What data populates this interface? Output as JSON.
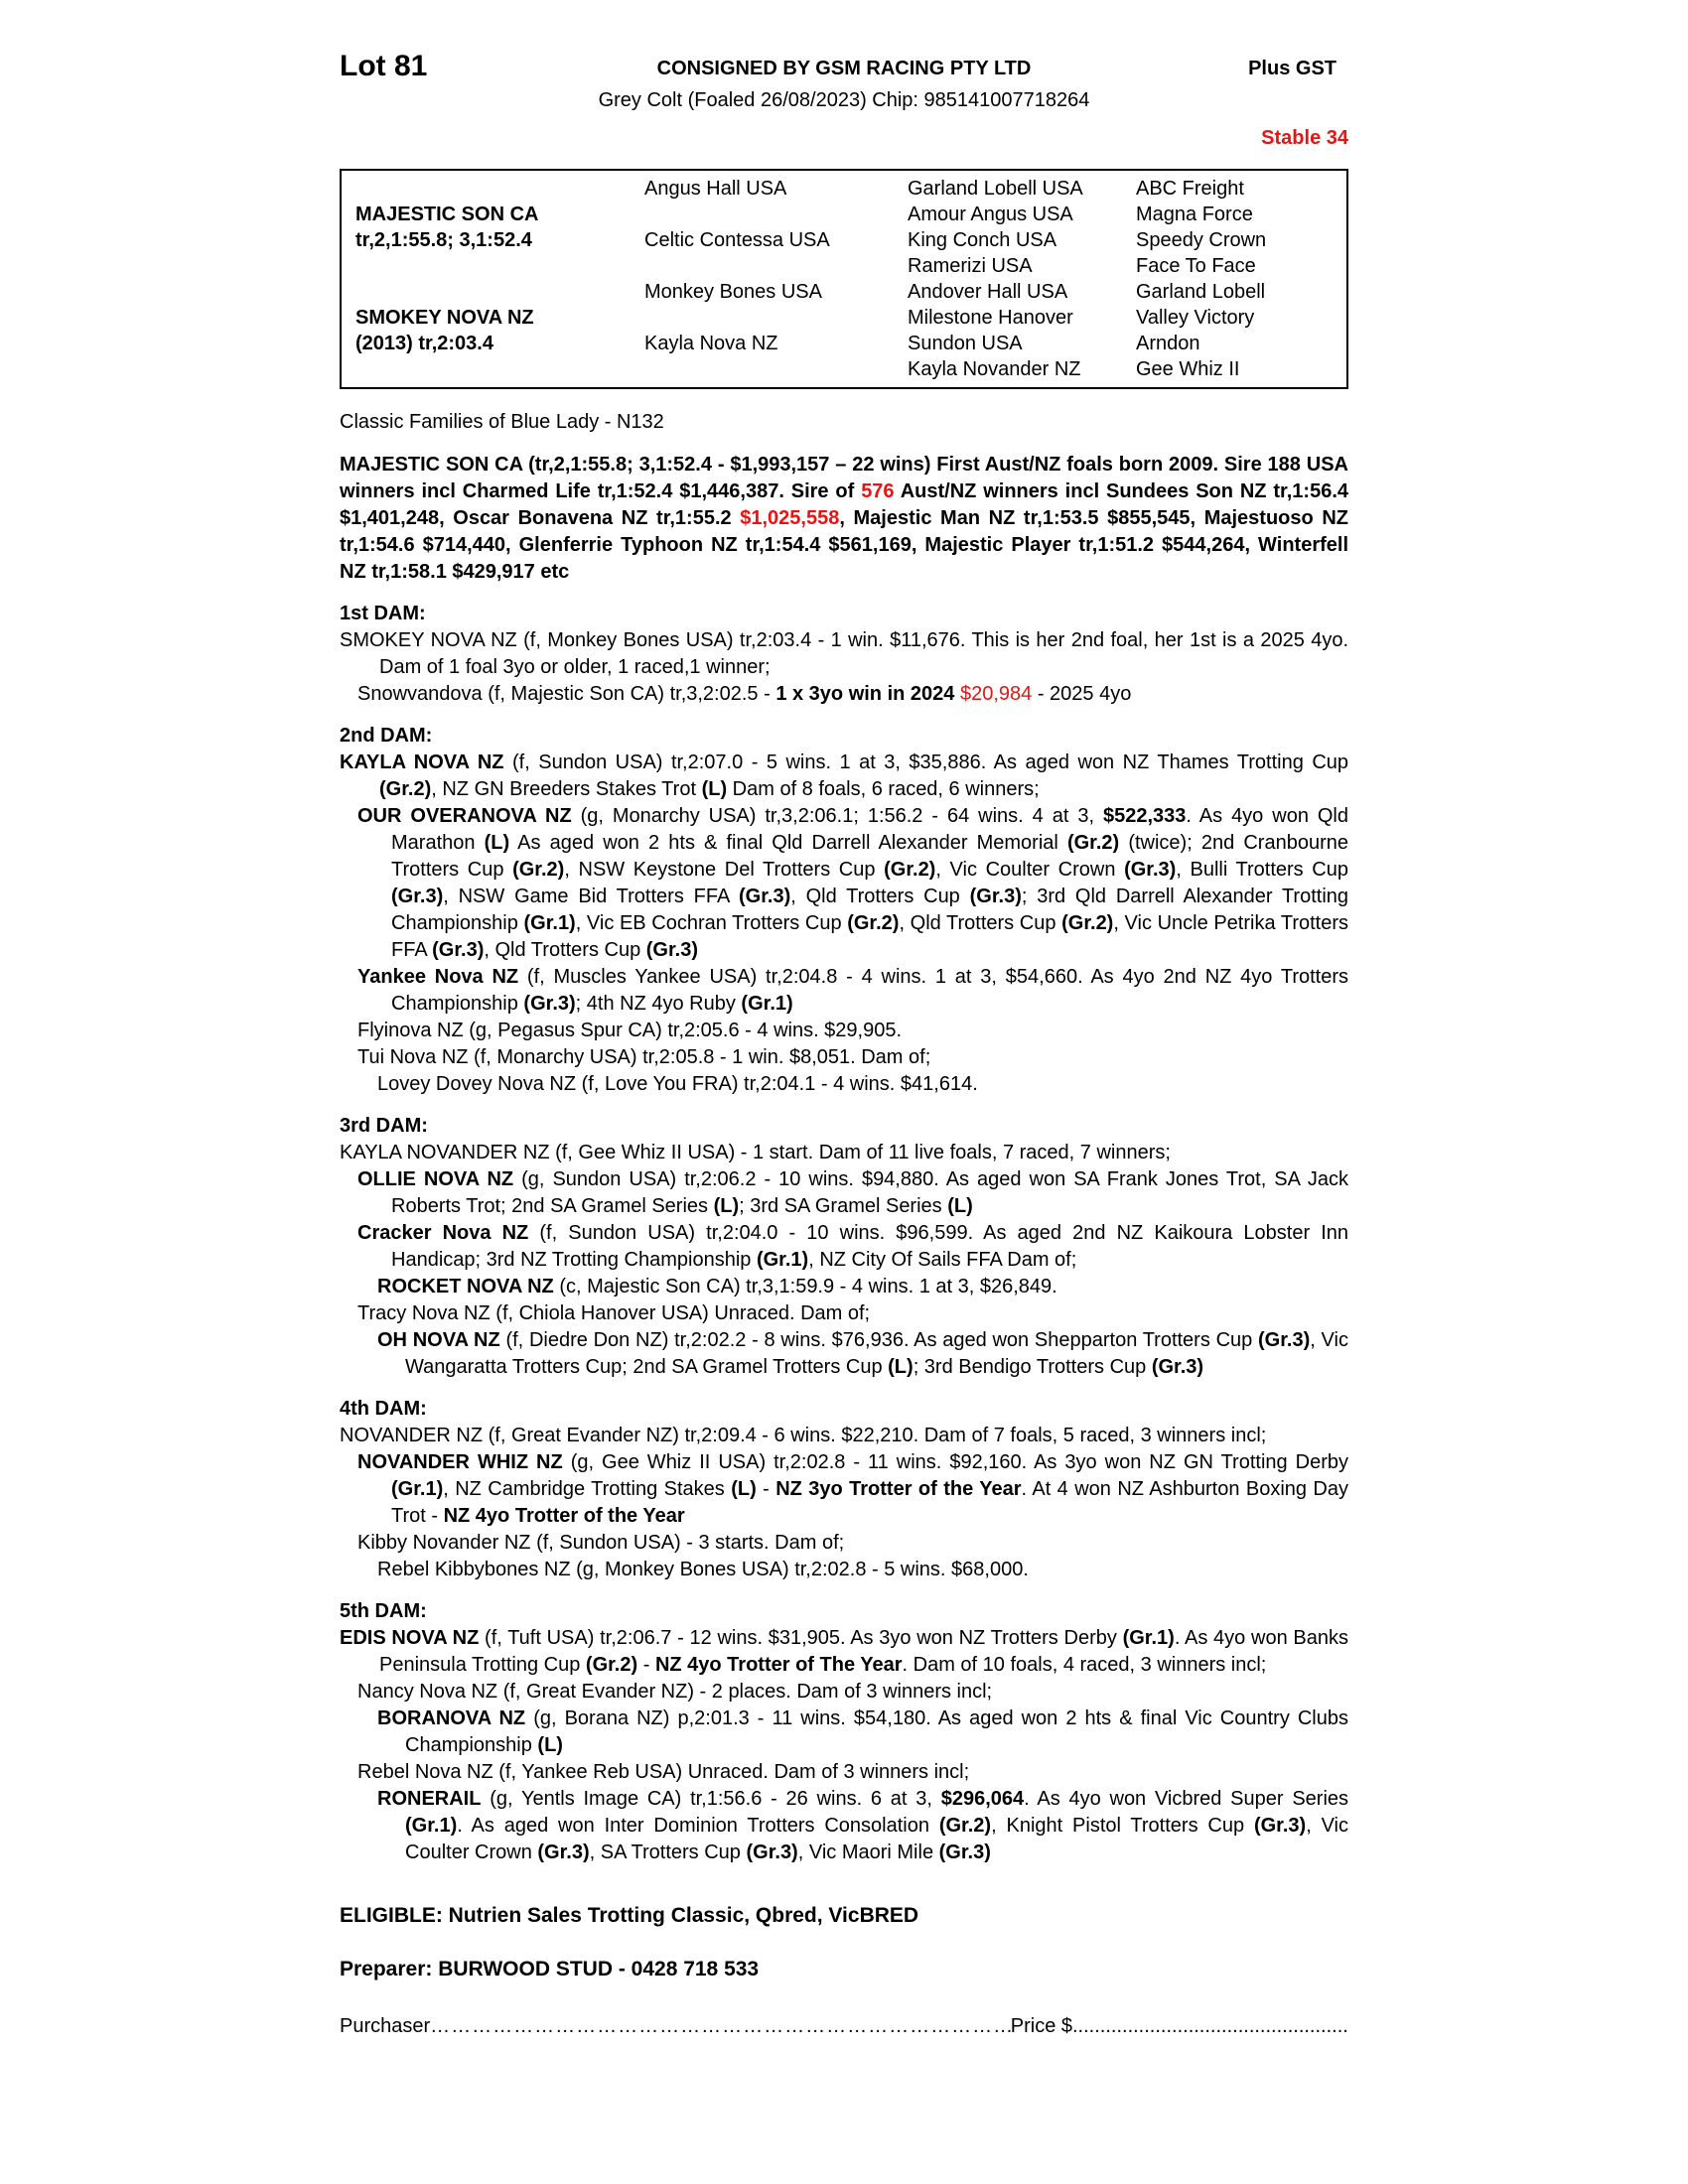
{
  "colors": {
    "red": "#ee1111",
    "text": "#000000",
    "background": "#ffffff"
  },
  "header": {
    "lot": "Lot 81",
    "consignor": "CONSIGNED BY GSM RACING PTY LTD",
    "plus_gst": "Plus GST",
    "description": "Grey Colt (Foaled 26/08/2023) Chip: 985141007718264",
    "stable": "Stable 34"
  },
  "pedigree_table": {
    "sire": {
      "name": "MAJESTIC SON CA",
      "record": "tr,2,1:55.8; 3,1:52.4"
    },
    "dam": {
      "name": "SMOKEY NOVA NZ",
      "record": "(2013) tr,2:03.4"
    },
    "gen2": [
      "Angus Hall USA",
      "Celtic Contessa USA",
      "Monkey Bones USA",
      "Kayla Nova NZ"
    ],
    "gen3": [
      "Garland Lobell USA",
      "Amour Angus USA",
      "King Conch USA",
      "Ramerizi USA",
      "Andover Hall USA",
      "Milestone Hanover",
      "Sundon USA",
      "Kayla Novander NZ"
    ],
    "gen4": [
      "ABC Freight",
      "Magna Force",
      "Speedy Crown",
      "Face To Face",
      "Garland Lobell",
      "Valley Victory",
      "Arndon",
      "Gee Whiz II"
    ]
  },
  "family_line": "Classic Families of Blue Lady - N132",
  "sections": [
    {
      "heading": null,
      "paragraphs": [
        {
          "level": "s",
          "segments": [
            {
              "t": "MAJESTIC SON CA (tr,2,1:55.8; 3,1:52.4 - $1,993,157 – 22 wins) First Aust/NZ foals born 2009. Sire 188 USA winners incl Charmed Life tr,1:52.4 $1,446,387. Sire of ",
              "b": true
            },
            {
              "t": "576",
              "b": true,
              "r": true
            },
            {
              "t": " Aust/NZ winners incl Sundees Son NZ tr,1:56.4 $1,401,248, Oscar Bonavena NZ tr,1:55.2 ",
              "b": true
            },
            {
              "t": "$1,025,558",
              "b": true,
              "r": true
            },
            {
              "t": ", Majestic Man NZ tr,1:53.5 $855,545, Majestuoso NZ tr,1:54.6 $714,440, Glenferrie Typhoon NZ tr,1:54.4 $561,169, Majestic Player tr,1:51.2 $544,264, Winterfell NZ tr,1:58.1 $429,917 etc",
              "b": true
            }
          ]
        }
      ]
    },
    {
      "heading": "1st DAM:",
      "paragraphs": [
        {
          "level": 0,
          "segments": [
            {
              "t": "SMOKEY NOVA NZ (f, Monkey Bones USA) tr,2:03.4 - 1 win. $11,676. This is her 2nd foal, her 1st is a 2025 4yo. Dam of 1 foal 3yo or older, 1 raced,1 winner;"
            }
          ]
        },
        {
          "level": 1,
          "segments": [
            {
              "t": "Snowvandova (f, Majestic Son CA) tr,3,2:02.5 - "
            },
            {
              "t": "1 x 3yo win in 2024",
              "b": true
            },
            {
              "t": " "
            },
            {
              "t": "$20,984",
              "r": true
            },
            {
              "t": " - 2025 4yo"
            }
          ]
        }
      ]
    },
    {
      "heading": "2nd DAM:",
      "paragraphs": [
        {
          "level": 0,
          "segments": [
            {
              "t": "KAYLA NOVA NZ",
              "b": true
            },
            {
              "t": " (f, Sundon USA) tr,2:07.0 - 5 wins. 1 at 3, $35,886. As aged won NZ Thames Trotting Cup "
            },
            {
              "t": "(Gr.2)",
              "b": true
            },
            {
              "t": ", NZ GN Breeders Stakes Trot "
            },
            {
              "t": "(L)",
              "b": true
            },
            {
              "t": " Dam of 8 foals, 6 raced, 6 winners;"
            }
          ]
        },
        {
          "level": 1,
          "segments": [
            {
              "t": "OUR OVERANOVA NZ",
              "b": true
            },
            {
              "t": " (g, Monarchy USA) tr,3,2:06.1; 1:56.2 - 64 wins. 4 at 3, "
            },
            {
              "t": "$522,333",
              "b": true
            },
            {
              "t": ". As 4yo won Qld Marathon "
            },
            {
              "t": "(L)",
              "b": true
            },
            {
              "t": " As aged won 2 hts & final Qld Darrell Alexander Memorial "
            },
            {
              "t": "(Gr.2)",
              "b": true
            },
            {
              "t": " (twice); 2nd Cranbourne Trotters Cup "
            },
            {
              "t": "(Gr.2)",
              "b": true
            },
            {
              "t": ", NSW Keystone Del Trotters Cup "
            },
            {
              "t": "(Gr.2)",
              "b": true
            },
            {
              "t": ", Vic Coulter Crown "
            },
            {
              "t": "(Gr.3)",
              "b": true
            },
            {
              "t": ", Bulli Trotters Cup "
            },
            {
              "t": "(Gr.3)",
              "b": true
            },
            {
              "t": ", NSW Game Bid Trotters FFA "
            },
            {
              "t": "(Gr.3)",
              "b": true
            },
            {
              "t": ", Qld Trotters Cup "
            },
            {
              "t": "(Gr.3)",
              "b": true
            },
            {
              "t": "; 3rd Qld Darrell Alexander Trotting Championship "
            },
            {
              "t": "(Gr.1)",
              "b": true
            },
            {
              "t": ", Vic EB Cochran Trotters Cup "
            },
            {
              "t": "(Gr.2)",
              "b": true
            },
            {
              "t": ", Qld Trotters Cup "
            },
            {
              "t": "(Gr.2)",
              "b": true
            },
            {
              "t": ", Vic Uncle Petrika Trotters FFA "
            },
            {
              "t": "(Gr.3)",
              "b": true
            },
            {
              "t": ", Qld Trotters Cup "
            },
            {
              "t": "(Gr.3)",
              "b": true
            }
          ]
        },
        {
          "level": 1,
          "segments": [
            {
              "t": "Yankee Nova NZ",
              "b": true
            },
            {
              "t": " (f, Muscles Yankee USA) tr,2:04.8 - 4 wins. 1 at 3, $54,660. As 4yo 2nd NZ 4yo Trotters Championship "
            },
            {
              "t": "(Gr.3)",
              "b": true
            },
            {
              "t": "; 4th NZ 4yo Ruby "
            },
            {
              "t": "(Gr.1)",
              "b": true
            }
          ]
        },
        {
          "level": 1,
          "segments": [
            {
              "t": "Flyinova NZ (g, Pegasus Spur CA) tr,2:05.6 - 4 wins. $29,905."
            }
          ]
        },
        {
          "level": 1,
          "segments": [
            {
              "t": "Tui Nova NZ (f, Monarchy USA) tr,2:05.8 - 1 win. $8,051. Dam of;"
            }
          ]
        },
        {
          "level": 2,
          "segments": [
            {
              "t": "Lovey Dovey Nova NZ (f, Love You FRA) tr,2:04.1 - 4 wins. $41,614."
            }
          ]
        }
      ]
    },
    {
      "heading": "3rd DAM:",
      "paragraphs": [
        {
          "level": 0,
          "segments": [
            {
              "t": "KAYLA NOVANDER NZ (f, Gee Whiz II USA) - 1 start. Dam of 11 live foals, 7 raced, 7 winners;"
            }
          ]
        },
        {
          "level": 1,
          "segments": [
            {
              "t": "OLLIE NOVA NZ",
              "b": true
            },
            {
              "t": " (g, Sundon USA) tr,2:06.2 - 10 wins. $94,880. As aged won SA Frank Jones Trot, SA Jack Roberts Trot; 2nd SA Gramel Series "
            },
            {
              "t": "(L)",
              "b": true
            },
            {
              "t": "; 3rd SA Gramel Series "
            },
            {
              "t": "(L)",
              "b": true
            }
          ]
        },
        {
          "level": 1,
          "segments": [
            {
              "t": "Cracker Nova NZ",
              "b": true
            },
            {
              "t": " (f, Sundon USA) tr,2:04.0 - 10 wins. $96,599. As aged 2nd NZ Kaikoura Lobster Inn Handicap; 3rd NZ Trotting Championship "
            },
            {
              "t": "(Gr.1)",
              "b": true
            },
            {
              "t": ", NZ City Of Sails FFA Dam of;"
            }
          ]
        },
        {
          "level": 2,
          "segments": [
            {
              "t": "ROCKET NOVA NZ",
              "b": true
            },
            {
              "t": " (c, Majestic Son CA) tr,3,1:59.9 - 4 wins. 1 at 3, $26,849."
            }
          ]
        },
        {
          "level": 1,
          "segments": [
            {
              "t": "Tracy Nova NZ (f, Chiola Hanover USA) Unraced. Dam of;"
            }
          ]
        },
        {
          "level": 2,
          "segments": [
            {
              "t": "OH NOVA NZ",
              "b": true
            },
            {
              "t": " (f, Diedre Don NZ) tr,2:02.2 - 8 wins. $76,936. As aged won Shepparton Trotters Cup "
            },
            {
              "t": "(Gr.3)",
              "b": true
            },
            {
              "t": ", Vic Wangaratta Trotters Cup; 2nd SA Gramel Trotters Cup "
            },
            {
              "t": "(L)",
              "b": true
            },
            {
              "t": "; 3rd Bendigo Trotters Cup "
            },
            {
              "t": "(Gr.3)",
              "b": true
            }
          ]
        }
      ]
    },
    {
      "heading": "4th DAM:",
      "paragraphs": [
        {
          "level": 0,
          "segments": [
            {
              "t": "NOVANDER NZ (f, Great Evander NZ) tr,2:09.4 - 6 wins. $22,210. Dam of 7 foals, 5 raced, 3 winners incl;"
            }
          ]
        },
        {
          "level": 1,
          "segments": [
            {
              "t": "NOVANDER WHIZ NZ",
              "b": true
            },
            {
              "t": " (g, Gee Whiz II USA) tr,2:02.8 - 11 wins. $92,160. As 3yo won NZ GN Trotting Derby "
            },
            {
              "t": "(Gr.1)",
              "b": true
            },
            {
              "t": ", NZ Cambridge Trotting Stakes "
            },
            {
              "t": "(L)",
              "b": true
            },
            {
              "t": " - "
            },
            {
              "t": "NZ 3yo Trotter of the Year",
              "b": true
            },
            {
              "t": ". At 4 won NZ Ashburton Boxing Day Trot - "
            },
            {
              "t": "NZ 4yo Trotter of the Year",
              "b": true
            }
          ]
        },
        {
          "level": 1,
          "segments": [
            {
              "t": "Kibby Novander NZ (f, Sundon USA) - 3 starts. Dam of;"
            }
          ]
        },
        {
          "level": 2,
          "segments": [
            {
              "t": "Rebel Kibbybones NZ (g, Monkey Bones USA) tr,2:02.8 - 5 wins. $68,000."
            }
          ]
        }
      ]
    },
    {
      "heading": "5th DAM:",
      "paragraphs": [
        {
          "level": 0,
          "segments": [
            {
              "t": "EDIS NOVA NZ",
              "b": true
            },
            {
              "t": " (f, Tuft USA) tr,2:06.7 - 12 wins. $31,905. As 3yo won NZ Trotters Derby "
            },
            {
              "t": "(Gr.1)",
              "b": true
            },
            {
              "t": ". As 4yo won Banks Peninsula Trotting Cup "
            },
            {
              "t": "(Gr.2)",
              "b": true
            },
            {
              "t": " - "
            },
            {
              "t": "NZ 4yo Trotter of The Year",
              "b": true
            },
            {
              "t": ". Dam of 10 foals, 4 raced, 3 winners incl;"
            }
          ]
        },
        {
          "level": 1,
          "segments": [
            {
              "t": "Nancy Nova NZ (f, Great Evander NZ) - 2 places. Dam of 3 winners incl;"
            }
          ]
        },
        {
          "level": 2,
          "segments": [
            {
              "t": "BORANOVA NZ",
              "b": true
            },
            {
              "t": " (g, Borana NZ) p,2:01.3 - 11 wins. $54,180. As aged won 2 hts & final Vic Country Clubs Championship "
            },
            {
              "t": "(L)",
              "b": true
            }
          ]
        },
        {
          "level": 1,
          "segments": [
            {
              "t": "Rebel Nova NZ (f, Yankee Reb USA) Unraced. Dam of 3 winners incl;"
            }
          ]
        },
        {
          "level": 2,
          "segments": [
            {
              "t": "RONERAIL",
              "b": true
            },
            {
              "t": " (g, Yentls Image CA) tr,1:56.6 - 26 wins. 6 at 3, "
            },
            {
              "t": "$296,064",
              "b": true
            },
            {
              "t": ". As 4yo won Vicbred Super Series "
            },
            {
              "t": "(Gr.1)",
              "b": true
            },
            {
              "t": ". As aged won Inter Dominion Trotters Consolation "
            },
            {
              "t": "(Gr.2)",
              "b": true
            },
            {
              "t": ", Knight Pistol Trotters Cup "
            },
            {
              "t": "(Gr.3)",
              "b": true
            },
            {
              "t": ", Vic Coulter Crown "
            },
            {
              "t": "(Gr.3)",
              "b": true
            },
            {
              "t": ", SA Trotters Cup "
            },
            {
              "t": "(Gr.3)",
              "b": true
            },
            {
              "t": ", Vic Maori Mile "
            },
            {
              "t": "(Gr.3)",
              "b": true
            }
          ]
        }
      ]
    }
  ],
  "footer": {
    "eligible": "ELIGIBLE: Nutrien Sales Trotting Classic, Qbred, VicBRED",
    "preparer": "Preparer: BURWOOD STUD - 0428 718 533",
    "purchaser_label": "Purchaser",
    "purchaser_dots": "………………………………………………………………………………………………………………………………………………………………",
    "price_label": "Price $",
    "price_dots": "................................................................................................................................"
  }
}
